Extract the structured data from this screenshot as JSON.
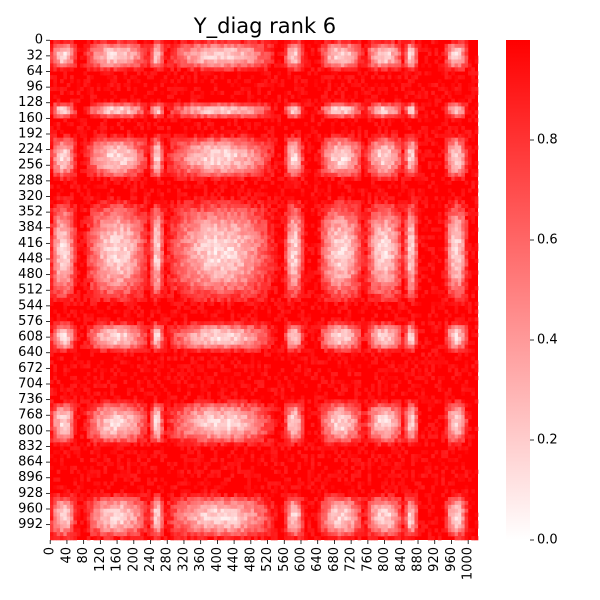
{
  "chart_data": {
    "type": "heatmap",
    "title": "Y_diag rank 6",
    "xlabel": "",
    "ylabel": "",
    "matrix_size": 1024,
    "x_ticks": [
      0,
      40,
      80,
      120,
      160,
      200,
      240,
      280,
      320,
      360,
      400,
      440,
      480,
      520,
      560,
      600,
      640,
      680,
      720,
      760,
      800,
      840,
      880,
      920,
      960,
      1000
    ],
    "y_ticks": [
      0,
      32,
      64,
      96,
      128,
      160,
      192,
      224,
      256,
      288,
      320,
      352,
      384,
      416,
      448,
      480,
      512,
      544,
      576,
      608,
      640,
      672,
      704,
      736,
      768,
      800,
      832,
      864,
      896,
      928,
      960,
      992
    ],
    "colorbar": {
      "min": 0.0,
      "max": 1.0,
      "ticks": [
        0.0,
        0.2,
        0.4,
        0.6,
        0.8
      ],
      "tick_labels": [
        "0.0",
        "0.2",
        "0.4",
        "0.6",
        "0.8"
      ],
      "color_low": "#ffffff",
      "color_high": "#ff0000"
    },
    "bands": {
      "light_rows": [
        [
          0,
          64
        ],
        [
          128,
          160
        ],
        [
          192,
          288
        ],
        [
          320,
          544
        ],
        [
          576,
          640
        ],
        [
          736,
          832
        ],
        [
          928,
          1024
        ]
      ],
      "light_cols": [
        [
          0,
          64
        ],
        [
          80,
          240
        ],
        [
          240,
          272
        ],
        [
          272,
          544
        ],
        [
          560,
          608
        ],
        [
          640,
          752
        ],
        [
          752,
          848
        ],
        [
          848,
          880
        ],
        [
          944,
          1000
        ]
      ]
    },
    "notes": ""
  }
}
